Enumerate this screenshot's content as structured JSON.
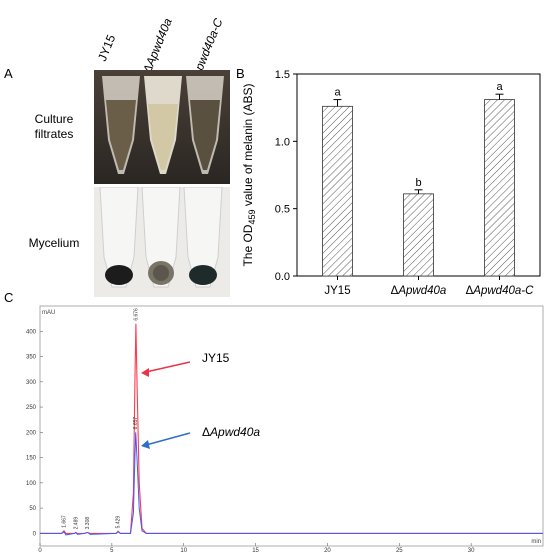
{
  "panels": {
    "a": {
      "letter": "A",
      "strains": [
        "JY15",
        "ΔApwd40a",
        "ΔApwd40a-C"
      ],
      "rows": [
        {
          "label_lines": [
            "Culture",
            "filtrates"
          ]
        },
        {
          "label_lines": [
            "Mycelium"
          ]
        }
      ]
    },
    "b": {
      "letter": "B"
    },
    "c": {
      "letter": "C"
    }
  },
  "chart_data": [
    {
      "type": "bar",
      "categories": [
        "JY15",
        "ΔApwd40a",
        "ΔApwd40a-C"
      ],
      "values": [
        1.26,
        0.61,
        1.31
      ],
      "errors": [
        0.05,
        0.03,
        0.04
      ],
      "significance": [
        "a",
        "b",
        "a"
      ],
      "ylabel": "The OD459 value of melanin (ABS)",
      "ylabel_parts": {
        "pre": "The OD",
        "sub": "459",
        "post": " value of melanin (ABS)"
      },
      "ylim": [
        0,
        1.5
      ],
      "yticks": [
        "0.0",
        "0.5",
        "1.0",
        "1.5"
      ],
      "bar_pattern": "diagonal-hatch",
      "grid": false
    },
    {
      "type": "line",
      "xlabel": "min",
      "ylabel": "mAU",
      "xlim": [
        0,
        35
      ],
      "ylim": [
        -25,
        450
      ],
      "xticks": [
        "0",
        "5",
        "10",
        "15",
        "20",
        "25",
        "30"
      ],
      "yticks": [
        "0",
        "50",
        "100",
        "150",
        "200",
        "250",
        "300",
        "350",
        "400"
      ],
      "series": [
        {
          "name": "JY15",
          "color": "#ff3b4e",
          "points": [
            [
              0,
              0
            ],
            [
              1.5,
              0
            ],
            [
              1.67,
              5
            ],
            [
              1.8,
              0
            ],
            [
              2.4,
              0
            ],
            [
              2.5,
              2
            ],
            [
              2.6,
              0
            ],
            [
              3.1,
              0
            ],
            [
              3.3,
              2
            ],
            [
              3.5,
              0
            ],
            [
              5.3,
              0
            ],
            [
              5.43,
              4
            ],
            [
              5.6,
              0
            ],
            [
              6.3,
              0
            ],
            [
              6.5,
              80
            ],
            [
              6.6,
              300
            ],
            [
              6.676,
              415
            ],
            [
              6.75,
              300
            ],
            [
              6.9,
              100
            ],
            [
              7.1,
              10
            ],
            [
              7.4,
              0
            ],
            [
              35,
              0
            ]
          ]
        },
        {
          "name": "ΔApwd40a",
          "color": "#3b5bff",
          "points": [
            [
              0,
              0
            ],
            [
              1.5,
              0
            ],
            [
              1.67,
              3
            ],
            [
              1.8,
              -3
            ],
            [
              2.4,
              0
            ],
            [
              2.5,
              2
            ],
            [
              2.6,
              -2
            ],
            [
              3.1,
              0
            ],
            [
              3.3,
              2
            ],
            [
              3.5,
              -2
            ],
            [
              5.3,
              0
            ],
            [
              5.43,
              3
            ],
            [
              5.6,
              0
            ],
            [
              6.3,
              0
            ],
            [
              6.5,
              40
            ],
            [
              6.6,
              150
            ],
            [
              6.657,
              200
            ],
            [
              6.75,
              150
            ],
            [
              6.9,
              50
            ],
            [
              7.1,
              5
            ],
            [
              7.4,
              0
            ],
            [
              35,
              0
            ]
          ]
        }
      ],
      "peak_labels": [
        {
          "text": "6.676",
          "x": 6.676,
          "y": 415
        },
        {
          "text": "6.657",
          "x": 6.657,
          "y": 200
        },
        {
          "text": "1.667",
          "x": 1.667,
          "y": 5
        },
        {
          "text": "2.489",
          "x": 2.489,
          "y": 2
        },
        {
          "text": "3.308",
          "x": 3.308,
          "y": 2
        },
        {
          "text": "5.429",
          "x": 5.429,
          "y": 4
        }
      ],
      "annotations": [
        {
          "text": "JY15",
          "color": "#e8344a"
        },
        {
          "text": "ΔApwd40a",
          "color": "#2f6fc8"
        }
      ]
    }
  ]
}
